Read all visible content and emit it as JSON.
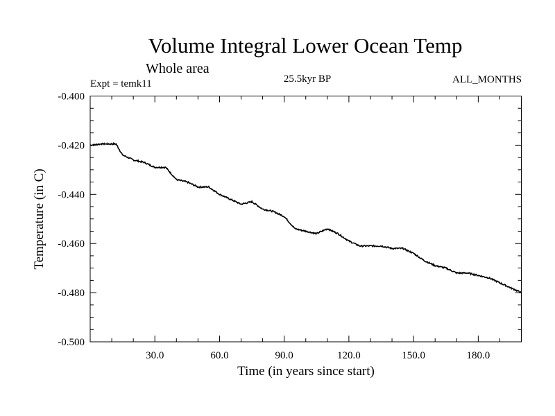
{
  "header": {
    "title": "Volume Integral Lower Ocean Temp",
    "subtitle": "Whole area",
    "experiment": "Expt = temk11",
    "period": "25.5kyr BP",
    "months": "ALL_MONTHS"
  },
  "chart_data": {
    "type": "line",
    "title": "Volume Integral Lower Ocean Temp",
    "subtitle": "Whole area",
    "xlabel": "Time (in years since start)",
    "ylabel": "Temperature (in C)",
    "xlim": [
      0,
      200
    ],
    "ylim": [
      -0.5,
      -0.4
    ],
    "xticks": [
      30,
      60,
      90,
      120,
      150,
      180
    ],
    "xtick_labels": [
      "30.0",
      "60.0",
      "90.0",
      "120.0",
      "150.0",
      "180.0"
    ],
    "x_minor_step": 10,
    "yticks": [
      -0.4,
      -0.42,
      -0.44,
      -0.46,
      -0.48,
      -0.5
    ],
    "ytick_labels": [
      "-0.400",
      "-0.420",
      "-0.440",
      "-0.460",
      "-0.480",
      "-0.500"
    ],
    "y_minor_step": 0.005,
    "grid": false,
    "series": [
      {
        "name": "temk11",
        "color": "#000000",
        "x": [
          0,
          5,
          12,
          15,
          20,
          25,
          30,
          35,
          40,
          45,
          50,
          55,
          60,
          65,
          70,
          75,
          80,
          85,
          90,
          95,
          100,
          105,
          110,
          115,
          120,
          125,
          130,
          135,
          140,
          145,
          150,
          155,
          160,
          165,
          170,
          175,
          180,
          185,
          190,
          195,
          200
        ],
        "values": [
          -0.42,
          -0.4195,
          -0.4195,
          -0.424,
          -0.426,
          -0.427,
          -0.429,
          -0.429,
          -0.434,
          -0.435,
          -0.437,
          -0.437,
          -0.44,
          -0.442,
          -0.444,
          -0.443,
          -0.446,
          -0.447,
          -0.449,
          -0.454,
          -0.455,
          -0.456,
          -0.454,
          -0.456,
          -0.459,
          -0.461,
          -0.461,
          -0.461,
          -0.462,
          -0.462,
          -0.464,
          -0.467,
          -0.469,
          -0.47,
          -0.472,
          -0.472,
          -0.473,
          -0.474,
          -0.476,
          -0.478,
          -0.48
        ]
      }
    ]
  }
}
